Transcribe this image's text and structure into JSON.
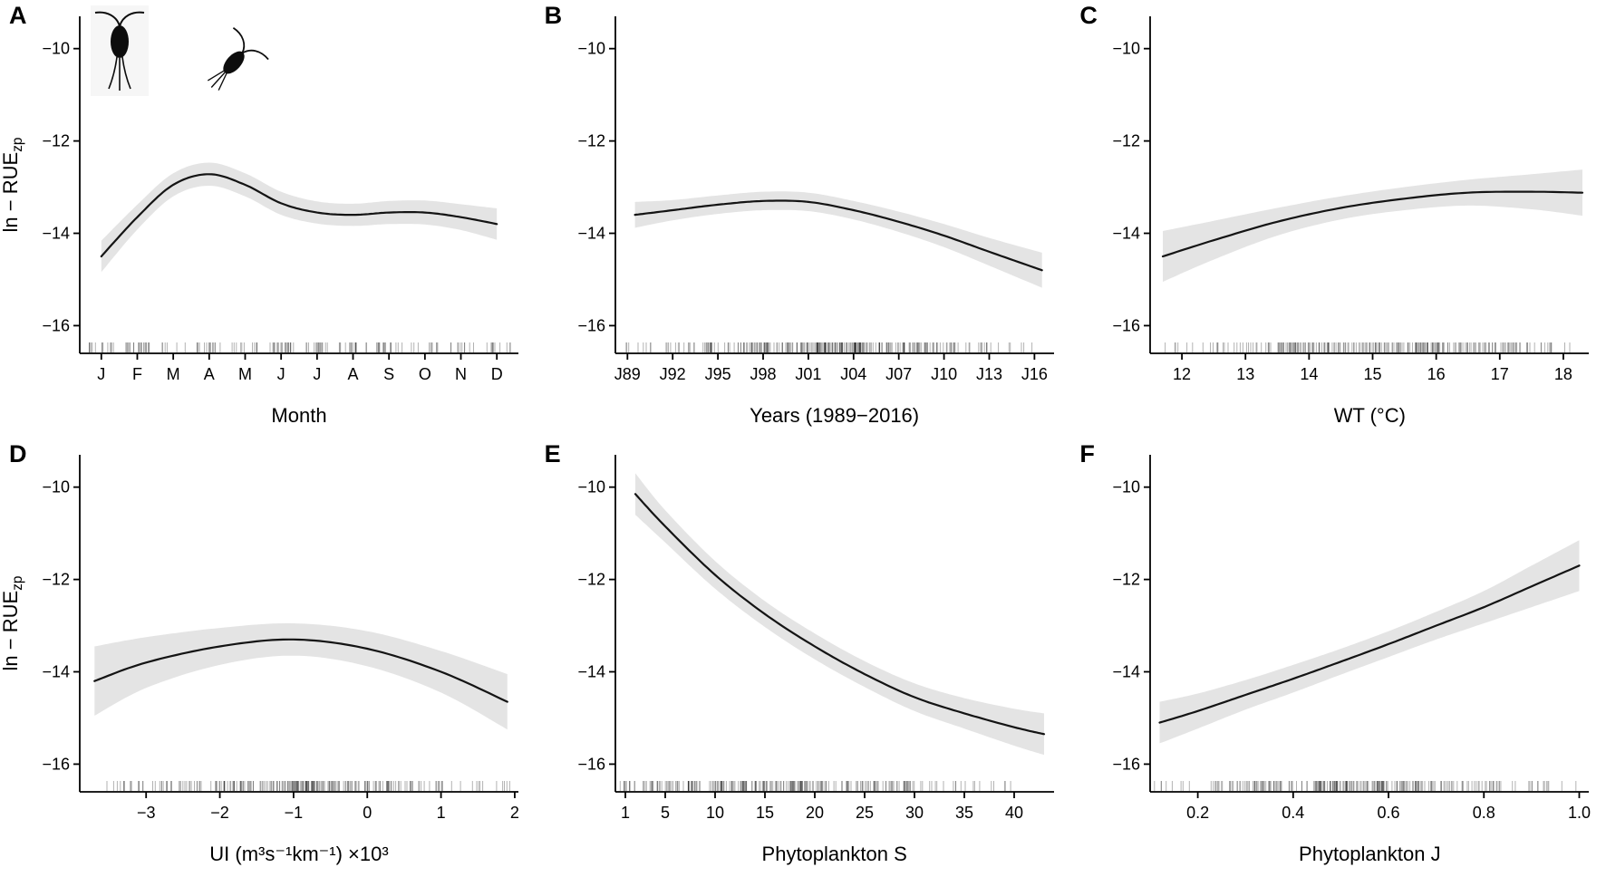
{
  "figure": {
    "type": "gam-partial-effect-smooths",
    "decorations": {
      "panel_a_icons": [
        "copepod-silhouette-1",
        "copepod-silhouette-2"
      ]
    }
  },
  "colors": {
    "curve": "#141414",
    "band": "#e4e4e4",
    "rug": "rgba(0,0,0,0.30)",
    "axis": "#000000",
    "text": "#000000"
  },
  "axes": {
    "ylabel_prefix": "ln − RUE",
    "ylabel_sub": "zp",
    "ylim": [
      -16.6,
      -9.3
    ],
    "yticks": {
      "values": [
        -16,
        -14,
        -12,
        -10
      ],
      "labels": [
        "−16",
        "−14",
        "−12",
        "−10"
      ]
    }
  },
  "chart_data": [
    {
      "panel": "A",
      "type": "line",
      "xlabel": "Month",
      "xlim": [
        0.4,
        12.6
      ],
      "xticks": {
        "values": [
          1,
          2,
          3,
          4,
          5,
          6,
          7,
          8,
          9,
          10,
          11,
          12
        ],
        "labels": [
          "J",
          "F",
          "M",
          "A",
          "M",
          "J",
          "J",
          "A",
          "S",
          "O",
          "N",
          "D"
        ]
      },
      "x": [
        1,
        2,
        3,
        4,
        5,
        6,
        7,
        8,
        9,
        10,
        11,
        12
      ],
      "y": [
        -14.5,
        -13.65,
        -12.95,
        -12.72,
        -12.95,
        -13.35,
        -13.55,
        -13.6,
        -13.55,
        -13.55,
        -13.65,
        -13.8
      ],
      "ci": [
        0.34,
        0.27,
        0.25,
        0.25,
        0.25,
        0.25,
        0.24,
        0.24,
        0.25,
        0.26,
        0.28,
        0.34
      ],
      "rug": {
        "seed": 11,
        "count": 170,
        "bias": "ticks"
      }
    },
    {
      "panel": "B",
      "type": "line",
      "xlabel": "Years (1989−2016)",
      "xlim": [
        1988.2,
        2017.3
      ],
      "xticks": {
        "values": [
          1989,
          1992,
          1995,
          1998,
          2001,
          2004,
          2007,
          2010,
          2013,
          2016
        ],
        "labels": [
          "J89",
          "J92",
          "J95",
          "J98",
          "J01",
          "J04",
          "J07",
          "J10",
          "J13",
          "J16"
        ]
      },
      "x": [
        1989.5,
        1992,
        1995,
        1998,
        2001,
        2004,
        2007,
        2010,
        2013,
        2016.5
      ],
      "y": [
        -13.6,
        -13.5,
        -13.38,
        -13.3,
        -13.32,
        -13.5,
        -13.75,
        -14.05,
        -14.4,
        -14.8
      ],
      "ci": [
        0.28,
        0.22,
        0.2,
        0.2,
        0.2,
        0.2,
        0.22,
        0.25,
        0.3,
        0.38
      ],
      "rug": {
        "seed": 22,
        "count": 300,
        "bias": "center"
      }
    },
    {
      "panel": "C",
      "type": "line",
      "xlabel": "WT (°C)",
      "xlim": [
        11.5,
        18.4
      ],
      "xticks": {
        "values": [
          12,
          13,
          14,
          15,
          16,
          17,
          18
        ],
        "labels": [
          "12",
          "13",
          "14",
          "15",
          "16",
          "17",
          "18"
        ]
      },
      "x": [
        11.7,
        12.5,
        13.5,
        14.5,
        15.5,
        16.5,
        17.5,
        18.3
      ],
      "y": [
        -14.5,
        -14.15,
        -13.75,
        -13.45,
        -13.25,
        -13.12,
        -13.1,
        -13.12
      ],
      "ci": [
        0.55,
        0.42,
        0.3,
        0.25,
        0.25,
        0.28,
        0.38,
        0.5
      ],
      "rug": {
        "seed": 33,
        "count": 260,
        "bias": "center"
      }
    },
    {
      "panel": "D",
      "type": "line",
      "xlabel": "UI (m³s⁻¹km⁻¹) ×10³",
      "xlim": [
        -3.9,
        2.05
      ],
      "xticks": {
        "values": [
          -3,
          -2,
          -1,
          0,
          1,
          2
        ],
        "labels": [
          "−3",
          "−2",
          "−1",
          "0",
          "1",
          "2"
        ]
      },
      "x": [
        -3.7,
        -3,
        -2,
        -1,
        0,
        1,
        1.9
      ],
      "y": [
        -14.2,
        -13.8,
        -13.45,
        -13.3,
        -13.5,
        -14.0,
        -14.65
      ],
      "ci": [
        0.75,
        0.55,
        0.4,
        0.35,
        0.38,
        0.45,
        0.6
      ],
      "rug": {
        "seed": 44,
        "count": 260,
        "bias": "center"
      }
    },
    {
      "panel": "E",
      "type": "line",
      "xlabel": "Phytoplankton S",
      "xlim": [
        0,
        44
      ],
      "xticks": {
        "values": [
          1,
          5,
          10,
          15,
          20,
          25,
          30,
          35,
          40
        ],
        "labels": [
          "1",
          "5",
          "10",
          "15",
          "20",
          "25",
          "30",
          "35",
          "40"
        ]
      },
      "x": [
        2,
        5,
        10,
        15,
        20,
        25,
        30,
        35,
        40,
        43
      ],
      "y": [
        -10.15,
        -10.85,
        -11.9,
        -12.75,
        -13.45,
        -14.05,
        -14.55,
        -14.9,
        -15.2,
        -15.35
      ],
      "ci": [
        0.45,
        0.35,
        0.3,
        0.28,
        0.28,
        0.28,
        0.3,
        0.33,
        0.4,
        0.45
      ],
      "rug": {
        "seed": 55,
        "count": 260,
        "bias": "low"
      }
    },
    {
      "panel": "F",
      "type": "line",
      "xlabel": "Phytoplankton J",
      "xlim": [
        0.1,
        1.02
      ],
      "xticks": {
        "values": [
          0.2,
          0.4,
          0.6,
          0.8,
          1.0
        ],
        "labels": [
          "0.2",
          "0.4",
          "0.6",
          "0.8",
          "1.0"
        ]
      },
      "x": [
        0.12,
        0.2,
        0.3,
        0.4,
        0.5,
        0.6,
        0.7,
        0.8,
        0.9,
        1.0
      ],
      "y": [
        -15.1,
        -14.85,
        -14.5,
        -14.15,
        -13.78,
        -13.4,
        -13.0,
        -12.6,
        -12.15,
        -11.7
      ],
      "ci": [
        0.45,
        0.38,
        0.32,
        0.3,
        0.28,
        0.28,
        0.3,
        0.35,
        0.45,
        0.55
      ],
      "rug": {
        "seed": 66,
        "count": 260,
        "bias": "center"
      }
    }
  ]
}
